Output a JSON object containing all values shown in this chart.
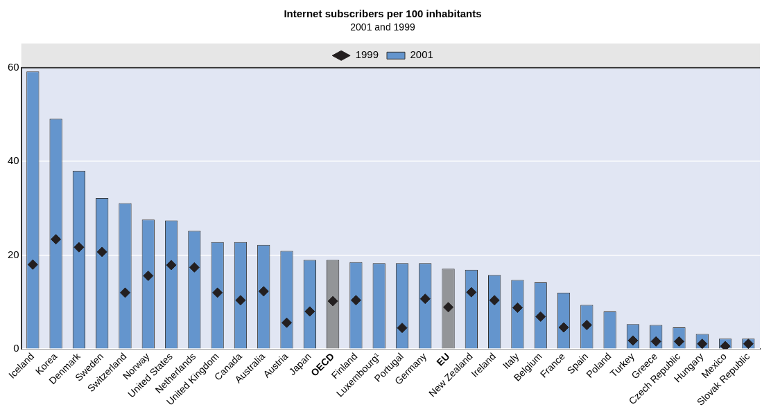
{
  "chart_data": {
    "type": "bar",
    "title": "Internet subscribers per 100 inhabitants",
    "subtitle": "2001 and 1999",
    "categories": [
      "Iceland",
      "Korea",
      "Denmark",
      "Sweden",
      "Switzerland",
      "Norway",
      "United States",
      "Netherlands",
      "United Kingdom",
      "Canada",
      "Australia",
      "Austria",
      "Japan",
      "OECD",
      "Finland",
      "Luxembourg¹",
      "Portugal",
      "Germany",
      "EU",
      "New Zealand",
      "Ireland",
      "Italy",
      "Belgium",
      "France",
      "Spain",
      "Poland",
      "Turkey",
      "Greece",
      "Czech Republic",
      "Hungary",
      "Mexico",
      "Slovak Republic"
    ],
    "series": [
      {
        "name": "1999",
        "type": "scatter",
        "color": "#231f20",
        "marker": "diamond",
        "x": [
          "Iceland",
          "Korea",
          "Denmark",
          "Sweden",
          "Switzerland",
          "Norway",
          "United States",
          "Netherlands",
          "United Kingdom",
          "Canada",
          "Australia",
          "Austria",
          "Japan",
          "OECD",
          "Finland",
          "Luxembourg¹",
          "Portugal",
          "Germany",
          "EU",
          "New Zealand",
          "Ireland",
          "Italy",
          "Belgium",
          "France",
          "Spain",
          "Poland",
          "Turkey",
          "Greece",
          "Czech Republic",
          "Hungary",
          "Mexico",
          "Slovak Republic"
        ],
        "values": [
          18.0,
          23.4,
          21.7,
          20.7,
          12.0,
          15.6,
          17.9,
          17.4,
          12.0,
          10.4,
          12.3,
          5.6,
          8.0,
          10.2,
          10.4,
          null,
          4.5,
          10.7,
          8.9,
          12.1,
          10.4,
          8.8,
          6.9,
          4.6,
          5.1,
          null,
          1.8,
          1.6,
          1.6,
          1.1,
          0.6,
          1.1
        ]
      },
      {
        "name": "2001",
        "color": "#6495cd",
        "colors": [
          "#6495cd",
          "#6495cd",
          "#6495cd",
          "#6495cd",
          "#6495cd",
          "#6495cd",
          "#6495cd",
          "#6495cd",
          "#6495cd",
          "#6495cd",
          "#6495cd",
          "#6495cd",
          "#6495cd",
          "#939598",
          "#6495cd",
          "#6495cd",
          "#6495cd",
          "#6495cd",
          "#939598",
          "#6495cd",
          "#6495cd",
          "#6495cd",
          "#6495cd",
          "#6495cd",
          "#6495cd",
          "#6495cd",
          "#6495cd",
          "#6495cd",
          "#6495cd",
          "#6495cd",
          "#6495cd",
          "#6495cd"
        ],
        "values": [
          59.2,
          49.1,
          38.0,
          32.2,
          31.1,
          27.6,
          27.4,
          25.2,
          22.8,
          22.8,
          22.2,
          20.9,
          19.0,
          19.0,
          18.5,
          18.3,
          18.3,
          18.3,
          17.1,
          16.9,
          15.8,
          14.7,
          14.2,
          12.0,
          9.4,
          8.0,
          5.3,
          5.1,
          4.6,
          3.2,
          2.2,
          2.2
        ]
      }
    ],
    "ylim": [
      0,
      60
    ],
    "yticks": [
      0,
      20,
      40,
      60
    ],
    "grid": "y",
    "legend": "top"
  }
}
